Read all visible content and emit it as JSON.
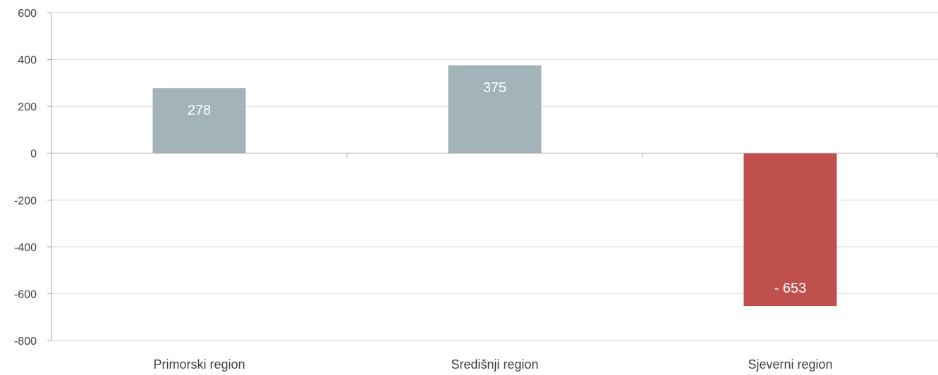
{
  "chart_data": {
    "type": "bar",
    "categories": [
      "Primorski region",
      "Središnji region",
      "Sjeverni region"
    ],
    "values": [
      278,
      375,
      -653
    ],
    "data_labels": [
      "278",
      "375",
      "- 653"
    ],
    "ylim": [
      -800,
      600
    ],
    "yticks": [
      600,
      400,
      200,
      0,
      -200,
      -400,
      -600,
      -800
    ],
    "ytick_labels": [
      "600",
      "400",
      "200",
      "0",
      "-200",
      "-400",
      "-600",
      "-800"
    ],
    "title": "",
    "xlabel": "",
    "ylabel": "",
    "grid": true,
    "colors": {
      "positive": "#a2b4b9",
      "negative": "#c0504d",
      "grid": "#d9d9d9",
      "axis": "#a6a6a6"
    }
  }
}
